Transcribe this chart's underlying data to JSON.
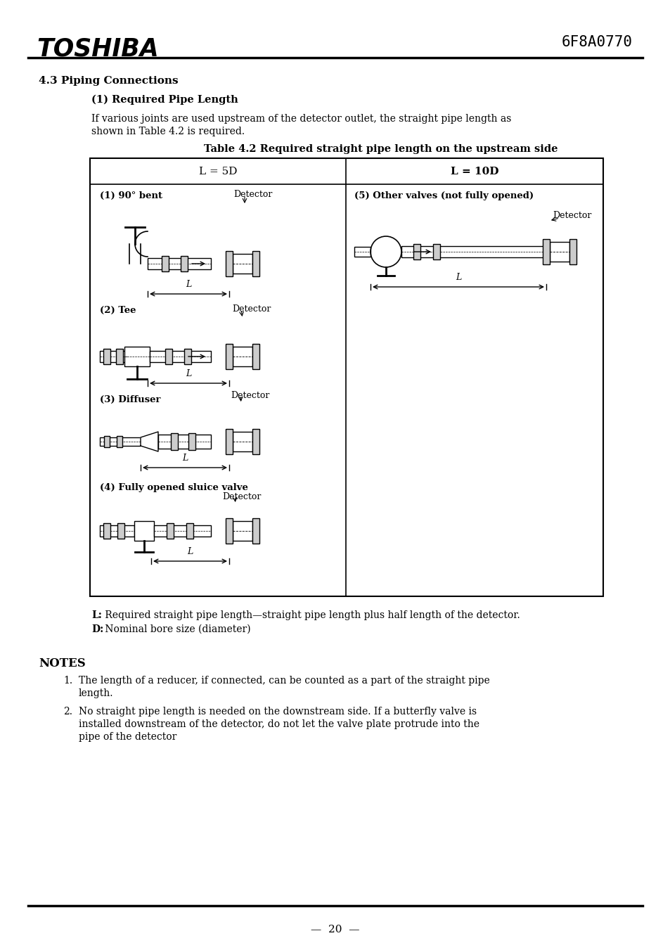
{
  "title": "TOSHIBA",
  "doc_number": "6F8A0770",
  "section": "4.3 Piping Connections",
  "subsection": "(1) Required Pipe Length",
  "body_text1": "If various joints are used upstream of the detector outlet, the straight pipe length as",
  "body_text2": "shown in Table 4.2 is required.",
  "table_title": "Table 4.2 Required straight pipe length on the upstream side",
  "col1_header": "L = 5D",
  "col2_header": "L = 10D",
  "item1_label": "(1) 90° bent",
  "item1_detector": "Detector",
  "item2_label": "(2) Tee",
  "item2_detector": "Detector",
  "item3_label": "(3) Diffuser",
  "item3_detector": "Detector",
  "item4_label": "(4) Fully opened sluice valve",
  "item4_detector": "Detector",
  "item5_label": "(5) Other valves (not fully opened)",
  "item5_detector": "Detector",
  "legend1_bold": "L:",
  "legend1_text": " Required straight pipe length—straight pipe length plus half length of the detector.",
  "legend2_bold": "D:",
  "legend2_text": " Nominal bore size (diameter)",
  "notes_title": "NOTES",
  "note1a": "The length of a reducer, if connected, can be counted as a part of the straight pipe",
  "note1b": "length.",
  "note2a": "No straight pipe length is needed on the downstream side. If a butterfly valve is",
  "note2b": "installed downstream of the detector, do not let the valve plate protrude into the",
  "note2c": "pipe of the detector",
  "page_number": "20",
  "bg_color": "#ffffff",
  "text_color": "#000000",
  "line_color": "#000000"
}
